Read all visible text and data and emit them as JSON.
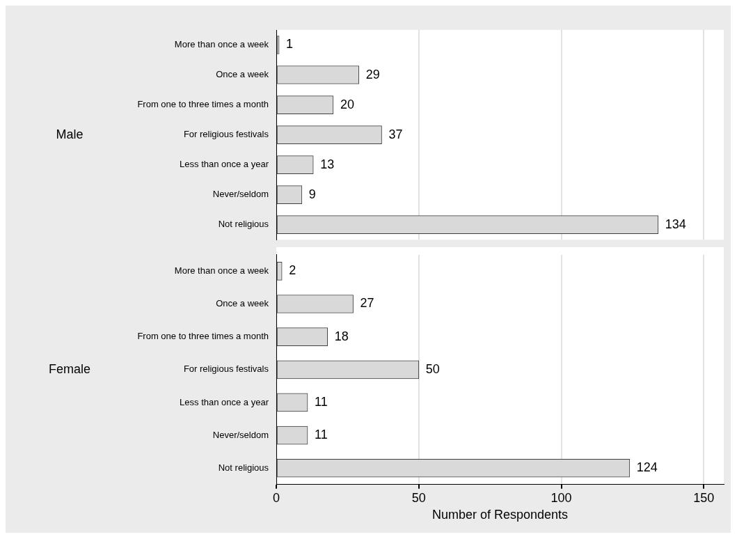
{
  "chart_data": [
    {
      "type": "bar",
      "orientation": "horizontal",
      "ylabel": "Male",
      "categories": [
        "More than once a week",
        "Once a week",
        "From one to three times a month",
        "For religious festivals",
        "Less than once a year",
        "Never/seldom",
        "Not religious"
      ],
      "values": [
        1,
        29,
        20,
        37,
        13,
        9,
        134
      ],
      "color": "#d9d9d9",
      "xlim": [
        0,
        157
      ],
      "xticks": [
        0,
        50,
        100,
        150
      ],
      "grid": "x",
      "data_labels": true,
      "tick_labels": "y"
    },
    {
      "type": "bar",
      "orientation": "horizontal",
      "ylabel": "Female",
      "xlabel": "Number of Respondents",
      "categories": [
        "More than once a week",
        "Once a week",
        "From one to three times a month",
        "For religious festivals",
        "Less than once a year",
        "Never/seldom",
        "Not religious"
      ],
      "values": [
        2,
        27,
        18,
        50,
        11,
        11,
        124
      ],
      "color": "#d9d9d9",
      "xlim": [
        0,
        157
      ],
      "xticks": [
        0,
        50,
        100,
        150
      ],
      "grid": "x",
      "data_labels": true
    }
  ]
}
